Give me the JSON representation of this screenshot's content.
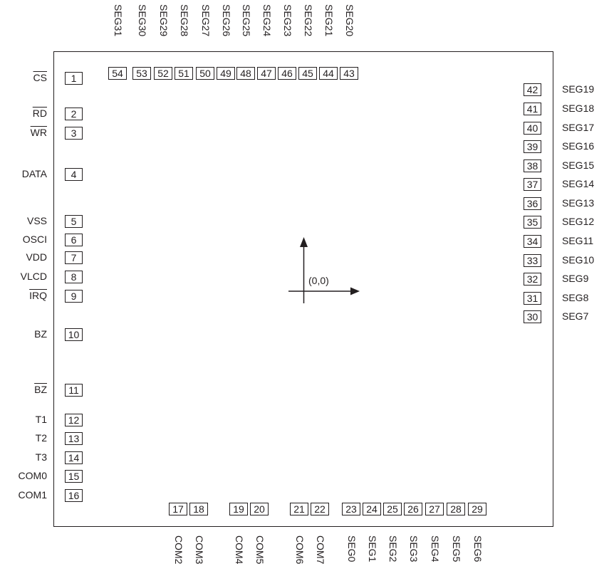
{
  "left_pins": [
    {
      "num": "1",
      "name": "CS",
      "overbar": true
    },
    {
      "num": "2",
      "name": "RD",
      "overbar": true
    },
    {
      "num": "3",
      "name": "WR",
      "overbar": true
    },
    {
      "num": "4",
      "name": "DATA",
      "overbar": false
    },
    {
      "num": "5",
      "name": "VSS",
      "overbar": false
    },
    {
      "num": "6",
      "name": "OSCI",
      "overbar": false
    },
    {
      "num": "7",
      "name": "VDD",
      "overbar": false
    },
    {
      "num": "8",
      "name": "VLCD",
      "overbar": false
    },
    {
      "num": "9",
      "name": "IRQ",
      "overbar": true
    },
    {
      "num": "10",
      "name": "BZ",
      "overbar": false
    },
    {
      "num": "11",
      "name": "BZ",
      "overbar": true
    },
    {
      "num": "12",
      "name": "T1",
      "overbar": false
    },
    {
      "num": "13",
      "name": "T2",
      "overbar": false
    },
    {
      "num": "14",
      "name": "T3",
      "overbar": false
    },
    {
      "num": "15",
      "name": "COM0",
      "overbar": false
    },
    {
      "num": "16",
      "name": "COM1",
      "overbar": false
    }
  ],
  "bottom_pins": [
    {
      "num": "17",
      "name": "COM2"
    },
    {
      "num": "18",
      "name": "COM3"
    },
    {
      "num": "19",
      "name": "COM4"
    },
    {
      "num": "20",
      "name": "COM5"
    },
    {
      "num": "21",
      "name": "COM6"
    },
    {
      "num": "22",
      "name": "COM7"
    },
    {
      "num": "23",
      "name": "SEG0"
    },
    {
      "num": "24",
      "name": "SEG1"
    },
    {
      "num": "25",
      "name": "SEG2"
    },
    {
      "num": "26",
      "name": "SEG3"
    },
    {
      "num": "27",
      "name": "SEG4"
    },
    {
      "num": "28",
      "name": "SEG5"
    },
    {
      "num": "29",
      "name": "SEG6"
    }
  ],
  "right_pins": [
    {
      "num": "30",
      "name": "SEG7"
    },
    {
      "num": "31",
      "name": "SEG8"
    },
    {
      "num": "32",
      "name": "SEG9"
    },
    {
      "num": "33",
      "name": "SEG10"
    },
    {
      "num": "34",
      "name": "SEG11"
    },
    {
      "num": "35",
      "name": "SEG12"
    },
    {
      "num": "36",
      "name": "SEG13"
    },
    {
      "num": "37",
      "name": "SEG14"
    },
    {
      "num": "38",
      "name": "SEG15"
    },
    {
      "num": "39",
      "name": "SEG16"
    },
    {
      "num": "40",
      "name": "SEG17"
    },
    {
      "num": "41",
      "name": "SEG18"
    },
    {
      "num": "42",
      "name": "SEG19"
    }
  ],
  "top_pins": [
    {
      "num": "43",
      "name": "SEG20"
    },
    {
      "num": "44",
      "name": "SEG21"
    },
    {
      "num": "45",
      "name": "SEG22"
    },
    {
      "num": "46",
      "name": "SEG23"
    },
    {
      "num": "47",
      "name": "SEG24"
    },
    {
      "num": "48",
      "name": "SEG25"
    },
    {
      "num": "49",
      "name": "SEG26"
    },
    {
      "num": "50",
      "name": "SEG27"
    },
    {
      "num": "51",
      "name": "SEG28"
    },
    {
      "num": "52",
      "name": "SEG29"
    },
    {
      "num": "53",
      "name": "SEG30"
    },
    {
      "num": "54",
      "name": "SEG31"
    }
  ],
  "origin_label": "(0,0)"
}
